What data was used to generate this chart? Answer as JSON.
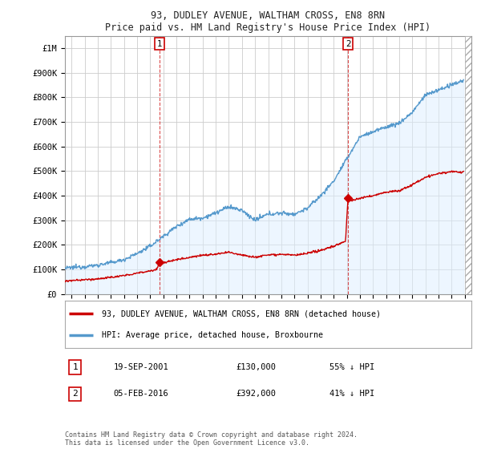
{
  "title": "93, DUDLEY AVENUE, WALTHAM CROSS, EN8 8RN",
  "subtitle": "Price paid vs. HM Land Registry's House Price Index (HPI)",
  "ylabel_ticks": [
    "£0",
    "£100K",
    "£200K",
    "£300K",
    "£400K",
    "£500K",
    "£600K",
    "£700K",
    "£800K",
    "£900K",
    "£1M"
  ],
  "ytick_values": [
    0,
    100000,
    200000,
    300000,
    400000,
    500000,
    600000,
    700000,
    800000,
    900000,
    1000000
  ],
  "ylim": [
    0,
    1050000
  ],
  "xlim_start": 1994.5,
  "xlim_end": 2025.5,
  "hpi_color": "#5599cc",
  "hpi_fill_color": "#ddeeff",
  "price_color": "#cc0000",
  "vline_color": "#cc0000",
  "transaction1_date": 2001.72,
  "transaction1_price": 130000,
  "transaction2_date": 2016.09,
  "transaction2_price": 392000,
  "legend_label_price": "93, DUDLEY AVENUE, WALTHAM CROSS, EN8 8RN (detached house)",
  "legend_label_hpi": "HPI: Average price, detached house, Broxbourne",
  "table_row1": [
    "1",
    "19-SEP-2001",
    "£130,000",
    "55% ↓ HPI"
  ],
  "table_row2": [
    "2",
    "05-FEB-2016",
    "£392,000",
    "41% ↓ HPI"
  ],
  "footer": "Contains HM Land Registry data © Crown copyright and database right 2024.\nThis data is licensed under the Open Government Licence v3.0.",
  "bg_color": "#ffffff",
  "grid_color": "#cccccc",
  "hpi_anchors": [
    [
      1994.5,
      105000
    ],
    [
      1995,
      108000
    ],
    [
      1996,
      112000
    ],
    [
      1997,
      118000
    ],
    [
      1998,
      128000
    ],
    [
      1999,
      140000
    ],
    [
      2000,
      165000
    ],
    [
      2001,
      195000
    ],
    [
      2002,
      235000
    ],
    [
      2003,
      275000
    ],
    [
      2004,
      305000
    ],
    [
      2005,
      310000
    ],
    [
      2006,
      330000
    ],
    [
      2007,
      355000
    ],
    [
      2008,
      340000
    ],
    [
      2009,
      300000
    ],
    [
      2010,
      325000
    ],
    [
      2011,
      330000
    ],
    [
      2012,
      325000
    ],
    [
      2013,
      350000
    ],
    [
      2014,
      400000
    ],
    [
      2015,
      460000
    ],
    [
      2016,
      550000
    ],
    [
      2017,
      640000
    ],
    [
      2018,
      660000
    ],
    [
      2019,
      680000
    ],
    [
      2020,
      695000
    ],
    [
      2021,
      740000
    ],
    [
      2022,
      810000
    ],
    [
      2023,
      830000
    ],
    [
      2024,
      850000
    ],
    [
      2024.9,
      870000
    ]
  ],
  "price_anchors": [
    [
      1994.5,
      52000
    ],
    [
      1995,
      55000
    ],
    [
      1996,
      58000
    ],
    [
      1997,
      62000
    ],
    [
      1998,
      68000
    ],
    [
      1999,
      75000
    ],
    [
      2000,
      85000
    ],
    [
      2001.5,
      100000
    ],
    [
      2001.72,
      130000
    ],
    [
      2002,
      127000
    ],
    [
      2003,
      140000
    ],
    [
      2004,
      150000
    ],
    [
      2005,
      158000
    ],
    [
      2006,
      162000
    ],
    [
      2007,
      170000
    ],
    [
      2008,
      160000
    ],
    [
      2009,
      150000
    ],
    [
      2010,
      160000
    ],
    [
      2011,
      162000
    ],
    [
      2012,
      158000
    ],
    [
      2013,
      165000
    ],
    [
      2014,
      178000
    ],
    [
      2015,
      195000
    ],
    [
      2015.9,
      215000
    ],
    [
      2016.09,
      392000
    ],
    [
      2016.3,
      380000
    ],
    [
      2017,
      390000
    ],
    [
      2018,
      400000
    ],
    [
      2019,
      415000
    ],
    [
      2020,
      420000
    ],
    [
      2021,
      445000
    ],
    [
      2022,
      475000
    ],
    [
      2023,
      490000
    ],
    [
      2024,
      498000
    ],
    [
      2024.9,
      495000
    ]
  ]
}
